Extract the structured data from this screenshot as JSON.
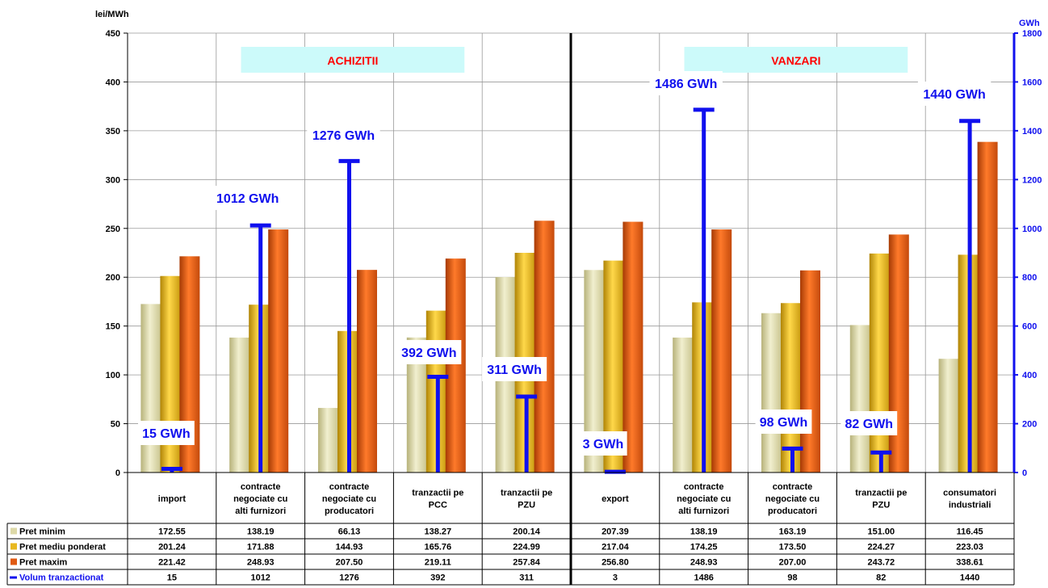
{
  "chart_data": {
    "type": "bar",
    "y_left_label": "lei/MWh",
    "y_right_label": "GWh",
    "y_left_range": [
      0,
      450
    ],
    "y_left_ticks": [
      0,
      50,
      100,
      150,
      200,
      250,
      300,
      350,
      400,
      450
    ],
    "y_right_range": [
      0,
      1800
    ],
    "y_right_ticks": [
      0,
      200,
      400,
      600,
      800,
      1000,
      1200,
      1400,
      1600,
      1800
    ],
    "grid": true,
    "sections": [
      {
        "label": "ACHIZITII",
        "from": 0,
        "to": 4
      },
      {
        "label": "VANZARI",
        "from": 5,
        "to": 9
      }
    ],
    "categories": [
      "import",
      "contracte negociate cu alti furnizori",
      "contracte negociate cu producatori",
      "tranzactii pe PCC",
      "tranzactii pe PZU",
      "export",
      "contracte negociate cu alti furnizori",
      "contracte negociate cu producatori",
      "tranzactii pe PZU",
      "consumatori industriali"
    ],
    "series": [
      {
        "name": "Pret minim",
        "color": "#ddd9a8",
        "values": [
          172.55,
          138.19,
          66.13,
          138.27,
          200.14,
          207.39,
          138.19,
          163.19,
          151.0,
          116.45
        ],
        "labels": [
          "172.55",
          "138.19",
          "66.13",
          "138.27",
          "200.14",
          "207.39",
          "138.19",
          "163.19",
          "151.00",
          "116.45"
        ]
      },
      {
        "name": "Pret mediu ponderat",
        "color": "#e8b820",
        "values": [
          201.24,
          171.88,
          144.93,
          165.76,
          224.99,
          217.04,
          174.25,
          173.5,
          224.27,
          223.03
        ],
        "labels": [
          "201.24",
          "171.88",
          "144.93",
          "165.76",
          "224.99",
          "217.04",
          "174.25",
          "173.50",
          "224.27",
          "223.03"
        ]
      },
      {
        "name": "Pret maxim",
        "color": "#e05a12",
        "values": [
          221.42,
          248.93,
          207.5,
          219.11,
          257.84,
          256.8,
          248.93,
          207.0,
          243.72,
          338.61
        ],
        "labels": [
          "221.42",
          "248.93",
          "207.50",
          "219.11",
          "257.84",
          "256.80",
          "248.93",
          "207.00",
          "243.72",
          "338.61"
        ]
      },
      {
        "name": "Volum tranzactionat",
        "color": "#1010ee",
        "axis": "right",
        "values": [
          15,
          1012,
          1276,
          392,
          311,
          3,
          1486,
          98,
          82,
          1440
        ],
        "labels": [
          "15",
          "1012",
          "1276",
          "392",
          "311",
          "3",
          "1486",
          "98",
          "82",
          "1440"
        ],
        "annotations": [
          "15 GWh",
          "1012 GWh",
          "1276 GWh",
          "392 GWh",
          "311 GWh",
          "3 GWh",
          "1486 GWh",
          "98 GWh",
          "82 GWh",
          "1440 GWh"
        ]
      }
    ]
  }
}
